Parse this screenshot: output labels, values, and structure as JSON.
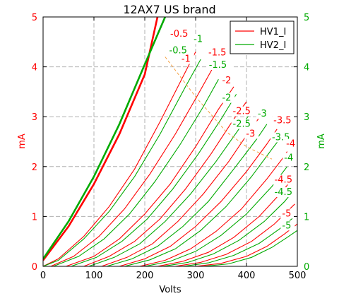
{
  "chart_data": {
    "type": "line",
    "title": "12AX7 US brand",
    "xlabel": "Volts",
    "ylabel_left": "mA",
    "ylabel_right": "mA",
    "xlim": [
      0,
      500
    ],
    "ylim": [
      0,
      5
    ],
    "x_ticks": [
      "0",
      "100",
      "200",
      "300",
      "400",
      "500"
    ],
    "y_ticks": [
      "0",
      "1",
      "2",
      "3",
      "4",
      "5"
    ],
    "grid": true,
    "legend_position": "top-right",
    "colors": {
      "HV1_I": "#ff0000",
      "HV2_I": "#00aa00",
      "load_line": "#f5a040"
    },
    "series": [
      {
        "name": "HV1_I",
        "color": "#ff0000",
        "curves": [
          {
            "grid_v": "0",
            "label": "",
            "points": [
              [
                0,
                0.12
              ],
              [
                50,
                0.8
              ],
              [
                100,
                1.65
              ],
              [
                150,
                2.65
              ],
              [
                200,
                3.85
              ],
              [
                225,
                5.0
              ]
            ]
          },
          {
            "grid_v": "-0.5",
            "label": "-0.5",
            "points": [
              [
                0,
                0
              ],
              [
                30,
                0.15
              ],
              [
                80,
                0.6
              ],
              [
                130,
                1.2
              ],
              [
                180,
                1.95
              ],
              [
                230,
                2.9
              ],
              [
                270,
                3.7
              ],
              [
                300,
                4.3
              ]
            ]
          },
          {
            "grid_v": "-1",
            "label": "-1",
            "points": [
              [
                15,
                0
              ],
              [
                60,
                0.2
              ],
              [
                110,
                0.6
              ],
              [
                160,
                1.15
              ],
              [
                210,
                1.85
              ],
              [
                260,
                2.65
              ],
              [
                305,
                3.45
              ],
              [
                335,
                4.0
              ]
            ]
          },
          {
            "grid_v": "-1.5",
            "label": "-1.5",
            "points": [
              [
                45,
                0
              ],
              [
                100,
                0.2
              ],
              [
                150,
                0.55
              ],
              [
                200,
                1.05
              ],
              [
                250,
                1.65
              ],
              [
                300,
                2.4
              ],
              [
                345,
                3.15
              ],
              [
                375,
                3.6
              ]
            ]
          },
          {
            "grid_v": "-2",
            "label": "-2",
            "points": [
              [
                80,
                0
              ],
              [
                130,
                0.2
              ],
              [
                180,
                0.5
              ],
              [
                230,
                0.95
              ],
              [
                280,
                1.55
              ],
              [
                330,
                2.25
              ],
              [
                375,
                2.95
              ],
              [
                400,
                3.3
              ]
            ]
          },
          {
            "grid_v": "-2.5",
            "label": "-2.5",
            "points": [
              [
                115,
                0
              ],
              [
                165,
                0.18
              ],
              [
                215,
                0.45
              ],
              [
                265,
                0.9
              ],
              [
                315,
                1.45
              ],
              [
                365,
                2.1
              ],
              [
                405,
                2.7
              ],
              [
                430,
                3.05
              ]
            ]
          },
          {
            "grid_v": "-3",
            "label": "-3",
            "points": [
              [
                150,
                0
              ],
              [
                200,
                0.15
              ],
              [
                250,
                0.4
              ],
              [
                300,
                0.8
              ],
              [
                350,
                1.3
              ],
              [
                400,
                1.9
              ],
              [
                440,
                2.45
              ],
              [
                460,
                2.75
              ]
            ]
          },
          {
            "grid_v": "-3.5",
            "label": "-3.5",
            "points": [
              [
                190,
                0
              ],
              [
                240,
                0.12
              ],
              [
                290,
                0.35
              ],
              [
                340,
                0.7
              ],
              [
                390,
                1.15
              ],
              [
                440,
                1.75
              ],
              [
                470,
                2.15
              ],
              [
                480,
                2.3
              ]
            ]
          },
          {
            "grid_v": "-4",
            "label": "-4",
            "points": [
              [
                225,
                0
              ],
              [
                275,
                0.1
              ],
              [
                325,
                0.28
              ],
              [
                375,
                0.58
              ],
              [
                425,
                1.0
              ],
              [
                470,
                1.5
              ],
              [
                490,
                1.75
              ]
            ]
          },
          {
            "grid_v": "-4.5",
            "label": "-4.5",
            "points": [
              [
                260,
                0
              ],
              [
                310,
                0.08
              ],
              [
                360,
                0.24
              ],
              [
                410,
                0.5
              ],
              [
                455,
                0.85
              ],
              [
                485,
                1.15
              ],
              [
                495,
                1.25
              ]
            ]
          },
          {
            "grid_v": "-5",
            "label": "-5",
            "points": [
              [
                300,
                0
              ],
              [
                350,
                0.06
              ],
              [
                400,
                0.2
              ],
              [
                440,
                0.4
              ],
              [
                475,
                0.65
              ],
              [
                500,
                0.85
              ]
            ]
          }
        ]
      },
      {
        "name": "HV2_I",
        "color": "#00aa00",
        "curves": [
          {
            "grid_v": "0",
            "label": "",
            "points": [
              [
                0,
                0.15
              ],
              [
                50,
                0.9
              ],
              [
                100,
                1.8
              ],
              [
                150,
                2.85
              ],
              [
                200,
                4.05
              ],
              [
                240,
                5.0
              ]
            ]
          },
          {
            "grid_v": "-0.5",
            "label": "-0.5",
            "points": [
              [
                0,
                0
              ],
              [
                30,
                0.12
              ],
              [
                80,
                0.55
              ],
              [
                130,
                1.1
              ],
              [
                180,
                1.8
              ],
              [
                230,
                2.65
              ],
              [
                280,
                3.6
              ],
              [
                310,
                4.15
              ]
            ]
          },
          {
            "grid_v": "-1",
            "label": "-1",
            "points": [
              [
                20,
                0
              ],
              [
                70,
                0.2
              ],
              [
                120,
                0.55
              ],
              [
                170,
                1.05
              ],
              [
                220,
                1.7
              ],
              [
                270,
                2.45
              ],
              [
                315,
                3.2
              ],
              [
                345,
                3.75
              ]
            ]
          },
          {
            "grid_v": "-1.5",
            "label": "-1.5",
            "points": [
              [
                55,
                0
              ],
              [
                105,
                0.18
              ],
              [
                155,
                0.5
              ],
              [
                205,
                0.95
              ],
              [
                255,
                1.55
              ],
              [
                305,
                2.25
              ],
              [
                350,
                2.95
              ],
              [
                380,
                3.45
              ]
            ]
          },
          {
            "grid_v": "-2",
            "label": "-2",
            "points": [
              [
                90,
                0
              ],
              [
                140,
                0.18
              ],
              [
                190,
                0.45
              ],
              [
                240,
                0.9
              ],
              [
                290,
                1.45
              ],
              [
                340,
                2.1
              ],
              [
                385,
                2.75
              ],
              [
                410,
                3.1
              ]
            ]
          },
          {
            "grid_v": "-2.5",
            "label": "-2.5",
            "points": [
              [
                125,
                0
              ],
              [
                175,
                0.15
              ],
              [
                225,
                0.4
              ],
              [
                275,
                0.8
              ],
              [
                325,
                1.3
              ],
              [
                375,
                1.95
              ],
              [
                420,
                2.55
              ],
              [
                440,
                2.85
              ]
            ]
          },
          {
            "grid_v": "-3",
            "label": "-3",
            "points": [
              [
                160,
                0
              ],
              [
                210,
                0.13
              ],
              [
                260,
                0.35
              ],
              [
                310,
                0.72
              ],
              [
                360,
                1.2
              ],
              [
                410,
                1.8
              ],
              [
                450,
                2.35
              ],
              [
                465,
                2.55
              ]
            ]
          },
          {
            "grid_v": "-3.5",
            "label": "-3.5",
            "points": [
              [
                200,
                0
              ],
              [
                250,
                0.1
              ],
              [
                300,
                0.3
              ],
              [
                350,
                0.62
              ],
              [
                400,
                1.05
              ],
              [
                450,
                1.6
              ],
              [
                480,
                2.0
              ]
            ]
          },
          {
            "grid_v": "-4",
            "label": "-4",
            "points": [
              [
                235,
                0
              ],
              [
                285,
                0.08
              ],
              [
                335,
                0.25
              ],
              [
                385,
                0.52
              ],
              [
                435,
                0.9
              ],
              [
                475,
                1.3
              ],
              [
                495,
                1.55
              ]
            ]
          },
          {
            "grid_v": "-4.5",
            "label": "-4.5",
            "points": [
              [
                275,
                0
              ],
              [
                325,
                0.07
              ],
              [
                375,
                0.22
              ],
              [
                425,
                0.46
              ],
              [
                465,
                0.75
              ],
              [
                495,
                1.0
              ]
            ]
          },
          {
            "grid_v": "-5",
            "label": "-5",
            "points": [
              [
                315,
                0
              ],
              [
                365,
                0.05
              ],
              [
                410,
                0.18
              ],
              [
                450,
                0.38
              ],
              [
                480,
                0.58
              ],
              [
                500,
                0.72
              ]
            ]
          }
        ]
      }
    ],
    "curve_labels": [
      {
        "text": "-0.5",
        "series": "HV1_I",
        "x": 250,
        "y": 4.6
      },
      {
        "text": "-0.5",
        "series": "HV2_I",
        "x": 248,
        "y": 4.27
      },
      {
        "text": "-1",
        "series": "HV2_I",
        "x": 296,
        "y": 4.5
      },
      {
        "text": "-1",
        "series": "HV1_I",
        "x": 272,
        "y": 4.1
      },
      {
        "text": "-1.5",
        "series": "HV1_I",
        "x": 325,
        "y": 4.23
      },
      {
        "text": "-1.5",
        "series": "HV2_I",
        "x": 326,
        "y": 3.98
      },
      {
        "text": "-2",
        "series": "HV1_I",
        "x": 352,
        "y": 3.67
      },
      {
        "text": "-2",
        "series": "HV2_I",
        "x": 352,
        "y": 3.32
      },
      {
        "text": "-2.5",
        "series": "HV1_I",
        "x": 373,
        "y": 3.05
      },
      {
        "text": "-2.5",
        "series": "HV2_I",
        "x": 373,
        "y": 2.8
      },
      {
        "text": "-3",
        "series": "HV2_I",
        "x": 422,
        "y": 3.0
      },
      {
        "text": "-3",
        "series": "HV1_I",
        "x": 399,
        "y": 2.6
      },
      {
        "text": "-3.5",
        "series": "HV1_I",
        "x": 453,
        "y": 2.87
      },
      {
        "text": "-3.5",
        "series": "HV2_I",
        "x": 450,
        "y": 2.53
      },
      {
        "text": "-4",
        "series": "HV1_I",
        "x": 478,
        "y": 2.4
      },
      {
        "text": "-4",
        "series": "HV2_I",
        "x": 474,
        "y": 2.12
      },
      {
        "text": "-4.5",
        "series": "HV1_I",
        "x": 455,
        "y": 1.68
      },
      {
        "text": "-4.5",
        "series": "HV2_I",
        "x": 455,
        "y": 1.43
      },
      {
        "text": "-5",
        "series": "HV1_I",
        "x": 470,
        "y": 1.0
      },
      {
        "text": "-5",
        "series": "HV2_I",
        "x": 470,
        "y": 0.76
      }
    ],
    "load_line": {
      "color": "#f5a040",
      "style": "dashed",
      "points": [
        [
          240,
          4.2
        ],
        [
          300,
          3.4
        ],
        [
          360,
          2.7
        ],
        [
          400,
          2.4
        ],
        [
          450,
          2.15
        ]
      ]
    }
  }
}
